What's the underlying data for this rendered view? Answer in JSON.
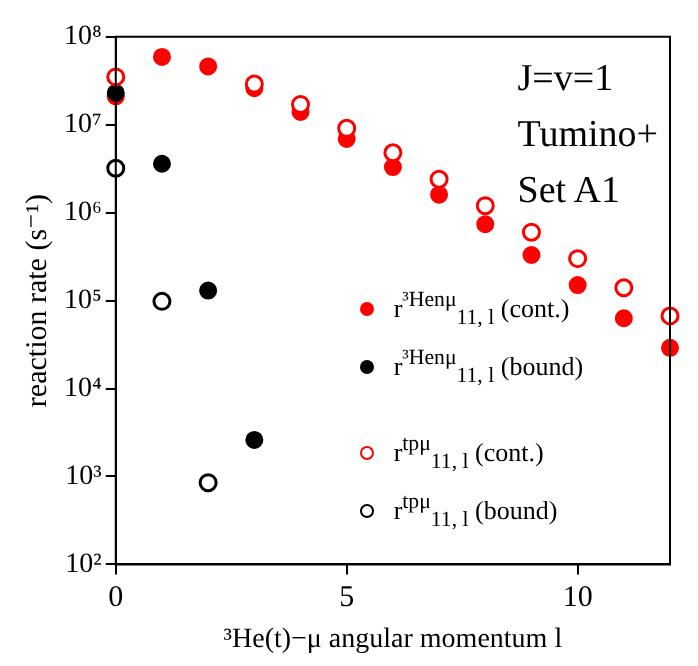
{
  "chart_data": {
    "type": "scatter",
    "x": [
      0,
      1,
      2,
      3,
      4,
      5,
      6,
      7,
      8,
      9,
      10,
      11,
      12
    ],
    "series": [
      {
        "name": "r$^{³Henμ}$$_{11, l}$ (cont.)",
        "color": "#ff0000",
        "values": [
          21000000.0,
          59000000.0,
          46000000.0,
          26000000.0,
          14000000.0,
          6900000.0,
          3300000.0,
          1600000.0,
          740000.0,
          330000.0,
          150000.0,
          63000.0,
          29000.0
        ]
      },
      {
        "name": "r$^{³Henμ}$$_{11, l}$ (bound)",
        "color": "#000000",
        "values": [
          23000000.0,
          3600000.0,
          130000.0,
          2600.0,
          null,
          null,
          null,
          null,
          null,
          null,
          null,
          null,
          null
        ]
      },
      {
        "name": "r$^{tpμ}$$_{11, l}$ (cont.)",
        "color": "#ff0000",
        "values": [
          35000000.0,
          null,
          null,
          29000000.0,
          17000000.0,
          9100000.0,
          4800000.0,
          2400000.0,
          1200000.0,
          600000.0,
          300000.0,
          140000.0,
          67000.0
        ]
      },
      {
        "name": "r$^{tpμ}$$_{11, l}$ (bound)",
        "color": "#000000",
        "values": [
          3200000.0,
          98000.0,
          850.0,
          null,
          null,
          null,
          null,
          null,
          null,
          null,
          null,
          null,
          null
        ]
      }
    ],
    "xlabel": "³He(t)−μ angular momentum l",
    "ylabel": "reaction rate (s⁻¹)",
    "annotations": [
      "J=v=1",
      "Tumino+",
      "Set A1"
    ],
    "log": "y",
    "xlim": [
      0,
      12
    ],
    "xticks": [
      0,
      5,
      10
    ],
    "ylim": [
      100,
      100000000
    ],
    "yticks": [
      {
        "value": 100,
        "label": "10²"
      },
      {
        "value": 1000,
        "label": "10³"
      },
      {
        "value": 10000,
        "label": "10⁴"
      },
      {
        "value": 100000,
        "label": "10⁵"
      },
      {
        "value": 1000000,
        "label": "10⁶"
      },
      {
        "value": 10000000,
        "label": "10⁷"
      },
      {
        "value": 100000000,
        "label": "10⁸"
      }
    ],
    "marker": "circle",
    "legend": "right",
    "grid": false
  }
}
